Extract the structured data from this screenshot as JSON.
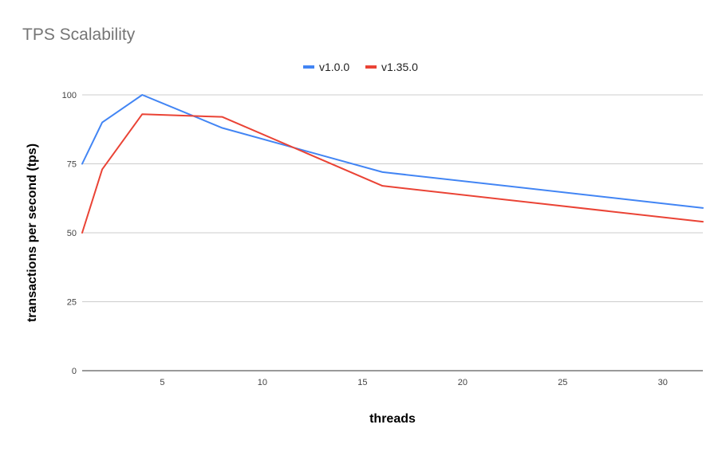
{
  "chart_data": {
    "type": "line",
    "title": "TPS Scalability",
    "xlabel": "threads",
    "ylabel": "transactions per second (tps)",
    "xlim": [
      1,
      32
    ],
    "ylim": [
      0,
      100
    ],
    "x_ticks": [
      5,
      10,
      15,
      20,
      25,
      30
    ],
    "y_ticks": [
      0,
      25,
      50,
      75,
      100
    ],
    "grid": true,
    "legend_position": "top-center",
    "series": [
      {
        "name": "v1.0.0",
        "color": "#4285F4",
        "x": [
          1,
          2,
          4,
          8,
          16,
          32
        ],
        "values": [
          75,
          90,
          100,
          88,
          72,
          59
        ]
      },
      {
        "name": "v1.35.0",
        "color": "#EA4335",
        "x": [
          1,
          2,
          4,
          8,
          16,
          32
        ],
        "values": [
          50,
          73,
          93,
          92,
          67,
          54
        ]
      }
    ]
  }
}
